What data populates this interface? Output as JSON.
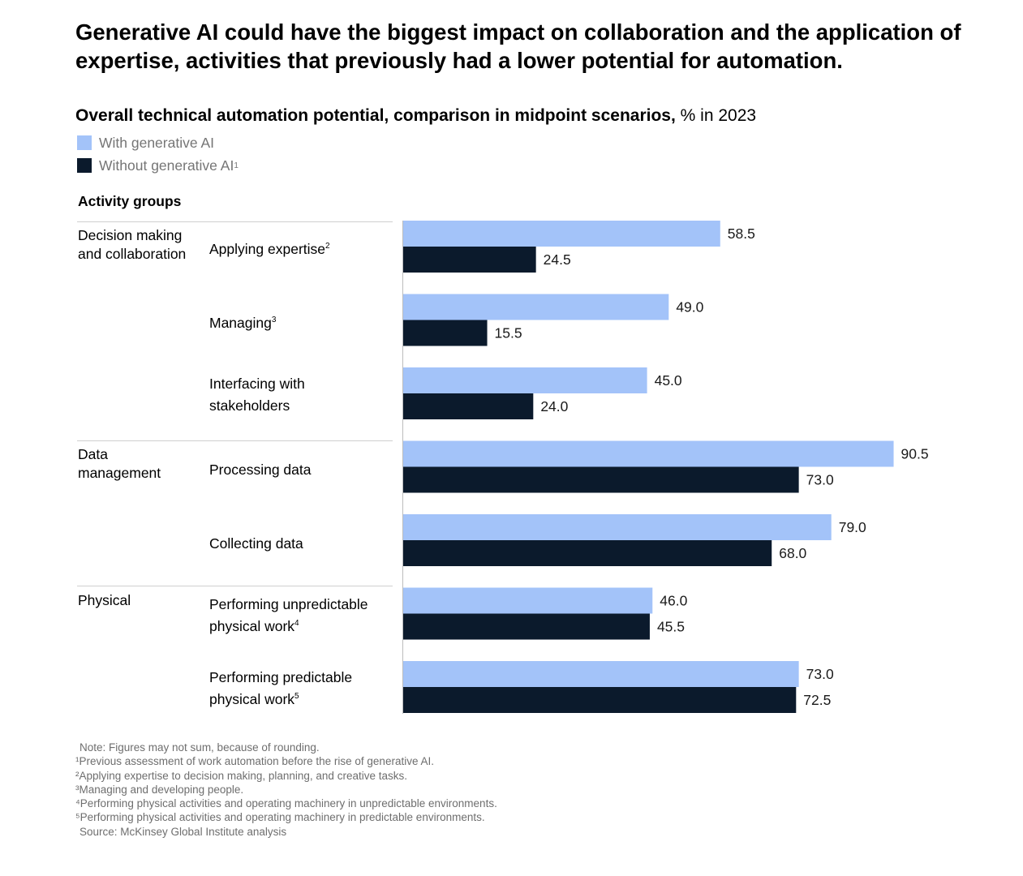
{
  "headline": "Generative AI could have the biggest impact on collaboration and the application of expertise, activities that previously had a lower potential for automation.",
  "subtitle": {
    "bold": "Overall technical automation potential, comparison in midpoint scenarios,",
    "regular": " % in 2023"
  },
  "legend": [
    {
      "label": "With generative AI",
      "sup": "",
      "color": "#a3c3f9"
    },
    {
      "label": "Without generative AI",
      "sup": "1",
      "color": "#0b1a2c"
    }
  ],
  "groups_header": "Activity groups",
  "groups": [
    "Decision making and collaboration",
    "Data management",
    "Physical"
  ],
  "categories": [
    {
      "label": "Applying expertise",
      "sup": "2"
    },
    {
      "label": "Managing",
      "sup": "3"
    },
    {
      "label": "Interfacing with stakeholders",
      "sup": ""
    },
    {
      "label": "Processing data",
      "sup": ""
    },
    {
      "label": "Collecting data",
      "sup": ""
    },
    {
      "label": "Performing unpredictable physical work",
      "sup": "4"
    },
    {
      "label": "Performing predictable physical work",
      "sup": "5"
    }
  ],
  "chart_data": {
    "type": "bar",
    "orientation": "horizontal",
    "title": "Overall technical automation potential, comparison in midpoint scenarios, % in 2023",
    "categories": [
      "Applying expertise",
      "Managing",
      "Interfacing with stakeholders",
      "Processing data",
      "Collecting data",
      "Performing unpredictable physical work",
      "Performing predictable physical work"
    ],
    "groups": [
      {
        "name": "Decision making and collaboration",
        "categories": [
          "Applying expertise",
          "Managing",
          "Interfacing with stakeholders"
        ]
      },
      {
        "name": "Data management",
        "categories": [
          "Processing data",
          "Collecting data"
        ]
      },
      {
        "name": "Physical",
        "categories": [
          "Performing unpredictable physical work",
          "Performing predictable physical work"
        ]
      }
    ],
    "series": [
      {
        "name": "With generative AI",
        "color": "#a3c3f9",
        "values": [
          58.5,
          49.0,
          45.0,
          90.5,
          79.0,
          46.0,
          73.0
        ],
        "labels": [
          "58.5",
          "49.0",
          "45.0",
          "90.5",
          "79.0",
          "46.0",
          "73.0"
        ]
      },
      {
        "name": "Without generative AI",
        "color": "#0b1a2c",
        "values": [
          24.5,
          15.5,
          24.0,
          73.0,
          68.0,
          45.5,
          72.5
        ],
        "labels": [
          "24.5",
          "15.5",
          "24.0",
          "73.0",
          "68.0",
          "45.5",
          "72.5"
        ]
      }
    ],
    "xlim": [
      0,
      100
    ],
    "legend_position": "top-left",
    "grid": false
  },
  "notes": [
    "Note: Figures may not sum, because of rounding.",
    "¹Previous assessment of work automation before the rise of generative AI.",
    "²Applying expertise to decision making, planning, and creative tasks.",
    "³Managing and developing people.",
    "⁴Performing physical activities and operating machinery in unpredictable environments.",
    "⁵Performing physical activities and operating machinery in predictable environments.",
    "Source: McKinsey Global Institute analysis"
  ]
}
